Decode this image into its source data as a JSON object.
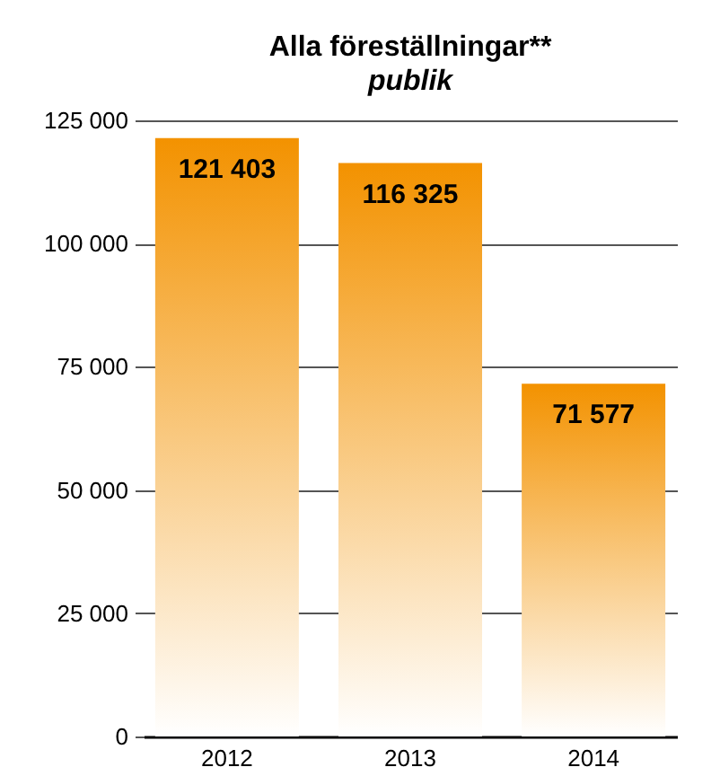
{
  "chart_data": {
    "type": "bar",
    "title": "Alla föreställningar**",
    "subtitle": "publik",
    "categories": [
      "2012",
      "2013",
      "2014"
    ],
    "values": [
      121403,
      116325,
      71577
    ],
    "value_labels": [
      "121 403",
      "116 325",
      "71 577"
    ],
    "color": "#f39200",
    "ylim": [
      0,
      125000
    ],
    "yticks": [
      {
        "value": 0,
        "label": "0"
      },
      {
        "value": 25000,
        "label": "25 000"
      },
      {
        "value": 50000,
        "label": "50 000"
      },
      {
        "value": 75000,
        "label": "75 000"
      },
      {
        "value": 100000,
        "label": "100 000"
      },
      {
        "value": 125000,
        "label": "125 000"
      }
    ],
    "grid": "y"
  }
}
